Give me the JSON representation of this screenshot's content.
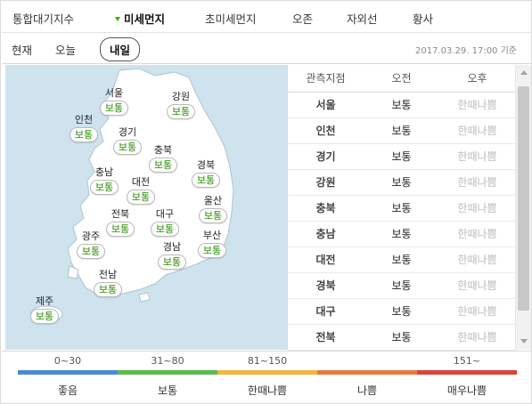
{
  "colors": {
    "active_caret": "#2eb400",
    "good_text": "#2a8a00",
    "map_sea": "#cfe3ef",
    "map_land": "#ffffff",
    "legend": [
      "#4a8ad6",
      "#5cbb4c",
      "#f2b640",
      "#e87a40",
      "#d9443c"
    ]
  },
  "top_tabs": [
    "통합대기지수",
    "미세먼지",
    "초미세먼지",
    "오존",
    "자외선",
    "황사"
  ],
  "active_tab_index": 1,
  "sub_tabs": [
    "현재",
    "오늘",
    "내일"
  ],
  "active_sub_tab_index": 2,
  "timestamp": "2017.03.29. 17:00 기준",
  "regions": [
    {
      "name": "서울",
      "status": "보통"
    },
    {
      "name": "강원",
      "status": "보통"
    },
    {
      "name": "인천",
      "status": "보통"
    },
    {
      "name": "경기",
      "status": "보통"
    },
    {
      "name": "충북",
      "status": "보통"
    },
    {
      "name": "충남",
      "status": "보통"
    },
    {
      "name": "대전",
      "status": "보통"
    },
    {
      "name": "경북",
      "status": "보통"
    },
    {
      "name": "울산",
      "status": "보통"
    },
    {
      "name": "전북",
      "status": "보통"
    },
    {
      "name": "대구",
      "status": "보통"
    },
    {
      "name": "광주",
      "status": "보통"
    },
    {
      "name": "경남",
      "status": "보통"
    },
    {
      "name": "부산",
      "status": "보통"
    },
    {
      "name": "전남",
      "status": "보통"
    },
    {
      "name": "제주",
      "status": "보통"
    }
  ],
  "table": {
    "headers": [
      "관측지점",
      "오전",
      "오후"
    ],
    "rows": [
      [
        "서울",
        "보통",
        "한때나쁨"
      ],
      [
        "인천",
        "보통",
        "한때나쁨"
      ],
      [
        "경기",
        "보통",
        "한때나쁨"
      ],
      [
        "강원",
        "보통",
        "한때나쁨"
      ],
      [
        "충북",
        "보통",
        "한때나쁨"
      ],
      [
        "충남",
        "보통",
        "한때나쁨"
      ],
      [
        "대전",
        "보통",
        "한때나쁨"
      ],
      [
        "경북",
        "보통",
        "한때나쁨"
      ],
      [
        "대구",
        "보통",
        "한때나쁨"
      ],
      [
        "전북",
        "보통",
        "한때나쁨"
      ]
    ]
  },
  "legend": [
    {
      "range": "0~30",
      "label": "좋음"
    },
    {
      "range": "31~80",
      "label": "보통"
    },
    {
      "range": "81~150",
      "label": "한때나쁨"
    },
    {
      "range": "",
      "label": "나쁨"
    },
    {
      "range": "151~",
      "label": "매우나쁨"
    }
  ],
  "icons": [
    "caret-down-icon",
    "scroll-up-icon",
    "scroll-down-icon"
  ]
}
